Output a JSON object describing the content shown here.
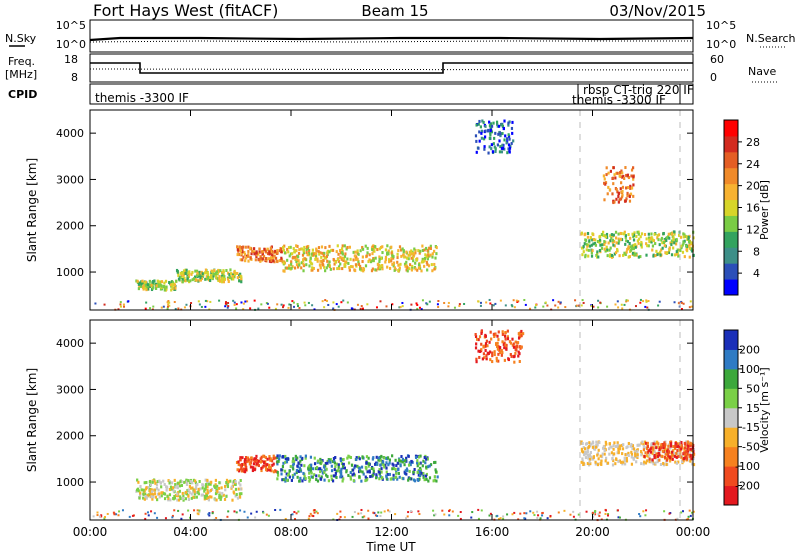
{
  "header": {
    "radar": "Fort Hays West (fitACF)",
    "beam": "Beam 15",
    "date": "03/Nov/2015"
  },
  "strips": {
    "noise": {
      "left_label": "N.Sky",
      "right_label": "N.Search",
      "left_ticks": [
        "10^5",
        "10^0"
      ],
      "right_ticks": [
        "10^5",
        "10^0"
      ]
    },
    "freq": {
      "left_label_1": "Freq.",
      "left_label_2": "[MHz]",
      "right_label": "Nave",
      "left_ticks": [
        "18",
        "8"
      ],
      "right_ticks": [
        "60",
        "0"
      ]
    },
    "cpid": {
      "label": "CPID",
      "modes": [
        "themis -3300 IF",
        "rbsp CT-trig 220 IF",
        "themis -3300 IF"
      ]
    }
  },
  "chart_data": [
    {
      "type": "heatmap",
      "name": "power",
      "ylabel": "Slant Range [km]",
      "yticks": [
        1000,
        2000,
        3000,
        4000
      ],
      "ylim": [
        180,
        4500
      ],
      "xlim_hours": [
        0,
        24
      ],
      "colorbar": {
        "label": "Power [dB]",
        "ticks": [
          "28",
          "24",
          "20",
          "16",
          "12",
          "8",
          "4"
        ],
        "colors": [
          "#0000ff",
          "#2b4fb8",
          "#3d8f88",
          "#33a35f",
          "#7acc45",
          "#d7d52a",
          "#f7b231",
          "#f08a29",
          "#e45e24",
          "#d22b1f",
          "#ff0000"
        ]
      },
      "features": [
        {
          "start_h": 1.8,
          "end_h": 3.4,
          "range_km": [
            640,
            840
          ],
          "level": "medium"
        },
        {
          "start_h": 3.4,
          "end_h": 6.0,
          "range_km": [
            820,
            1080
          ],
          "level": "medium"
        },
        {
          "start_h": 5.8,
          "end_h": 7.6,
          "range_km": [
            1250,
            1580
          ],
          "level": "high"
        },
        {
          "start_h": 7.6,
          "end_h": 13.8,
          "range_km": [
            1050,
            1600
          ],
          "level": "medium-high"
        },
        {
          "start_h": 19.5,
          "end_h": 24.0,
          "range_km": [
            1350,
            1900
          ],
          "level": "medium"
        },
        {
          "start_h": 20.4,
          "end_h": 21.6,
          "range_km": [
            2500,
            3300
          ],
          "level": "high"
        },
        {
          "start_h": 15.3,
          "end_h": 16.8,
          "range_km": [
            3600,
            4300
          ],
          "level": "low"
        }
      ]
    },
    {
      "type": "heatmap",
      "name": "velocity",
      "ylabel": "Slant Range [km]",
      "yticks": [
        1000,
        2000,
        3000,
        4000
      ],
      "ylim": [
        180,
        4500
      ],
      "xlim_hours": [
        0,
        24
      ],
      "xlabel": "Time UT",
      "xticks": [
        "00:00",
        "04:00",
        "08:00",
        "12:00",
        "16:00",
        "20:00",
        "00:00"
      ],
      "colorbar": {
        "label": "Velocity [m s⁻¹]",
        "ticks": [
          "200",
          "100",
          "50",
          "15",
          "-15",
          "-50",
          "-100",
          "-200"
        ],
        "colors": [
          "#e4191f",
          "#f04a1f",
          "#f6811f",
          "#f7b02a",
          "#c8c8c8",
          "#7ad047",
          "#3ca83b",
          "#2f7bc4",
          "#1a2fb8"
        ]
      },
      "features": [
        {
          "start_h": 1.8,
          "end_h": 6.0,
          "range_km": [
            640,
            1080
          ],
          "sign": "mixed low"
        },
        {
          "start_h": 5.8,
          "end_h": 7.4,
          "range_km": [
            1250,
            1600
          ],
          "sign": "negative"
        },
        {
          "start_h": 7.4,
          "end_h": 13.8,
          "range_km": [
            1050,
            1600
          ],
          "sign": "positive"
        },
        {
          "start_h": 15.3,
          "end_h": 17.2,
          "range_km": [
            3600,
            4300
          ],
          "sign": "negative"
        },
        {
          "start_h": 19.5,
          "end_h": 24.0,
          "range_km": [
            1400,
            1900
          ],
          "sign": "near zero"
        },
        {
          "start_h": 22.0,
          "end_h": 24.0,
          "range_km": [
            1500,
            1900
          ],
          "sign": "negative"
        }
      ]
    }
  ]
}
